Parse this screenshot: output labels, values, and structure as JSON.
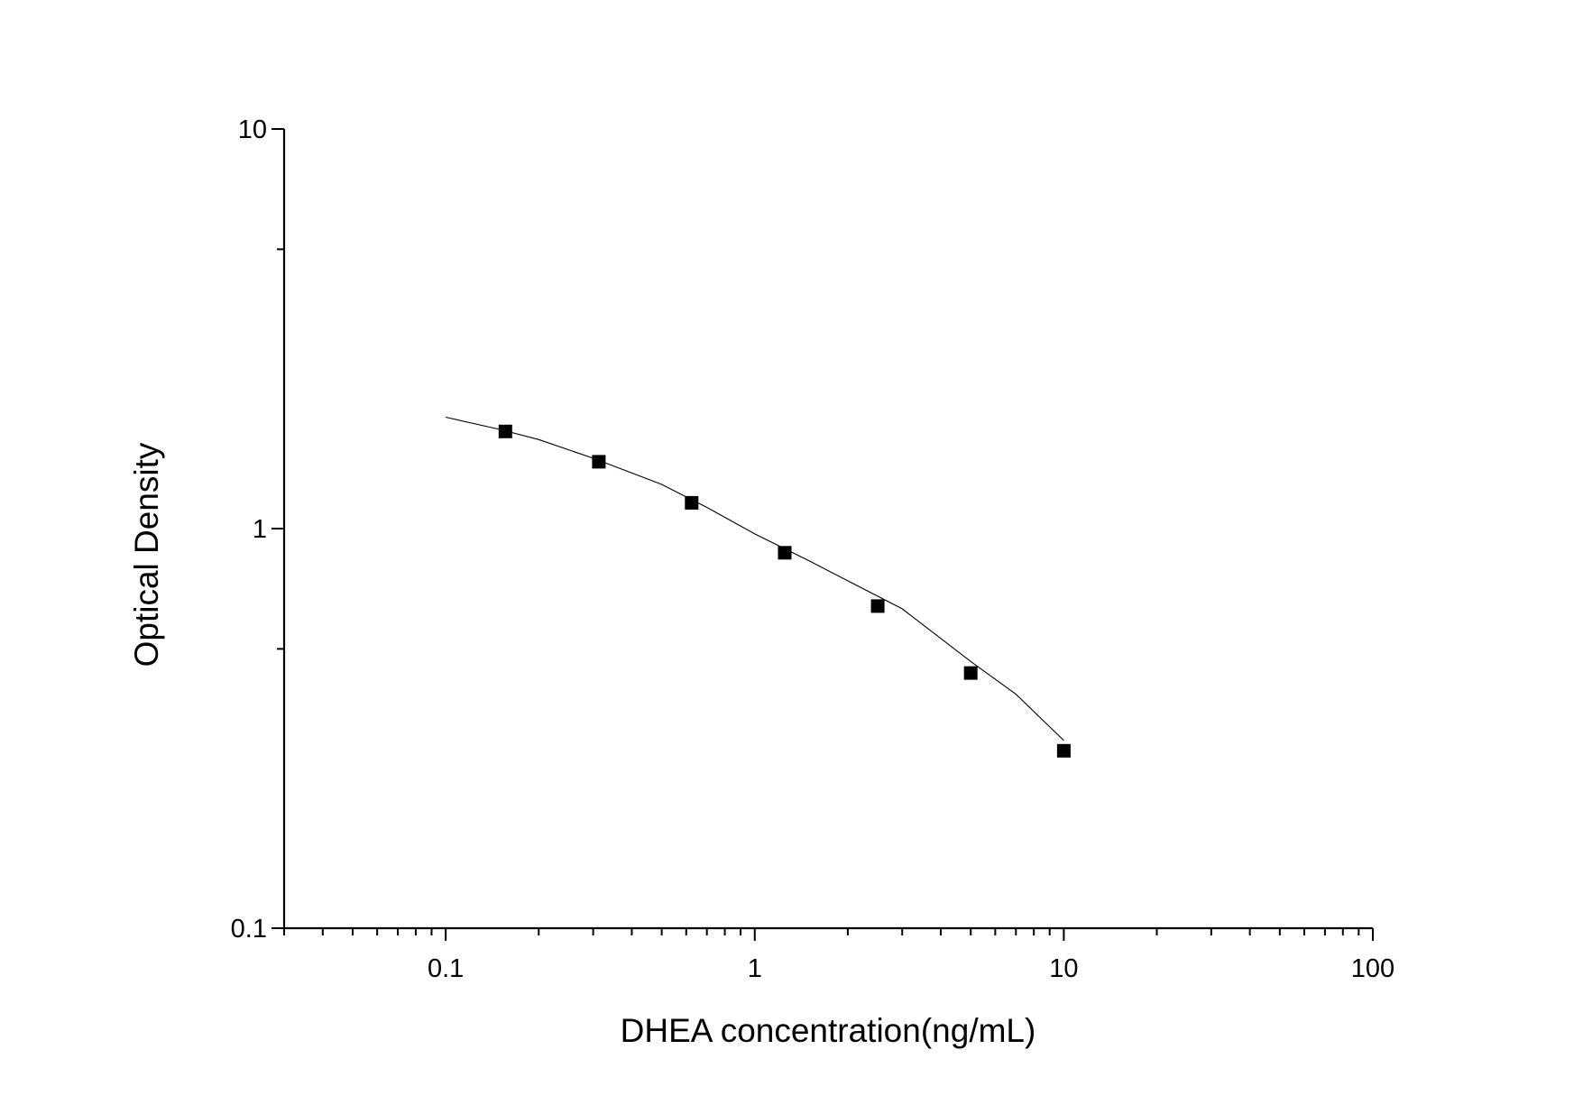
{
  "chart_data": {
    "type": "scatter",
    "title": "",
    "xlabel": "DHEA concentration(ng/mL)",
    "ylabel": "Optical Density",
    "xscale": "log",
    "yscale": "log",
    "xlim": [
      0.03,
      100
    ],
    "ylim": [
      0.1,
      10
    ],
    "x_tick_labels": [
      "0.1",
      "1",
      "10",
      "100"
    ],
    "x_tick_values": [
      0.1,
      1,
      10,
      100
    ],
    "y_tick_labels": [
      "0.1",
      "1",
      "10"
    ],
    "y_tick_values": [
      0.1,
      1,
      10
    ],
    "grid": false,
    "legend": "none",
    "marker": "square",
    "colors": {
      "marker": "#000000",
      "curve": "#000000",
      "axis": "#000000"
    },
    "series": [
      {
        "x": [
          0.156,
          0.313,
          0.625,
          1.25,
          2.5,
          5,
          10
        ],
        "y": [
          1.75,
          1.47,
          1.16,
          0.87,
          0.64,
          0.435,
          0.278
        ]
      }
    ],
    "fit_curve": {
      "x": [
        0.1,
        0.15,
        0.2,
        0.3,
        0.5,
        0.7,
        1,
        1.5,
        2,
        3,
        5,
        7,
        10
      ],
      "y": [
        1.9,
        1.77,
        1.67,
        1.5,
        1.29,
        1.13,
        0.97,
        0.83,
        0.74,
        0.63,
        0.465,
        0.385,
        0.295
      ]
    }
  }
}
